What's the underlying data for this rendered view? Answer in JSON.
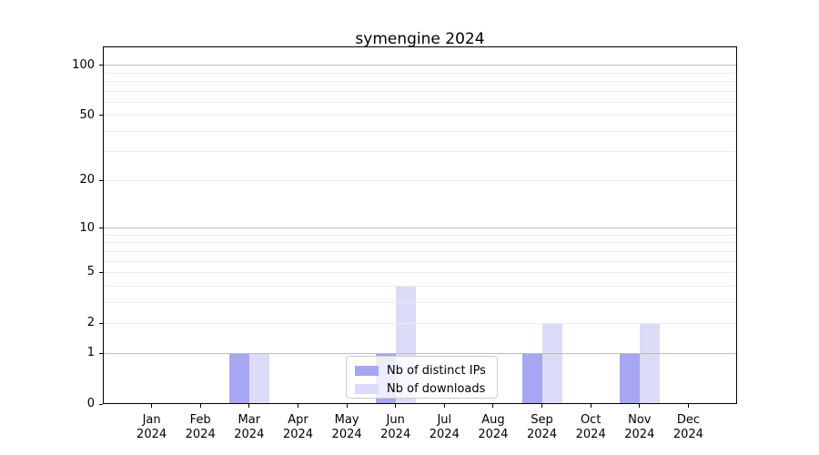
{
  "chart_data": {
    "type": "bar",
    "title": "symengine 2024",
    "categories": [
      "Jan 2024",
      "Feb 2024",
      "Mar 2024",
      "Apr 2024",
      "May 2024",
      "Jun 2024",
      "Jul 2024",
      "Aug 2024",
      "Sep 2024",
      "Oct 2024",
      "Nov 2024",
      "Dec 2024"
    ],
    "x_tick_line1": [
      "Jan",
      "Feb",
      "Mar",
      "Apr",
      "May",
      "Jun",
      "Jul",
      "Aug",
      "Sep",
      "Oct",
      "Nov",
      "Dec"
    ],
    "x_tick_line2": [
      "2024",
      "2024",
      "2024",
      "2024",
      "2024",
      "2024",
      "2024",
      "2024",
      "2024",
      "2024",
      "2024",
      "2024"
    ],
    "series": [
      {
        "name": "Nb of distinct IPs",
        "color": "#a6a6f2",
        "values": [
          0,
          0,
          1,
          0,
          0,
          1,
          0,
          0,
          1,
          0,
          1,
          0
        ]
      },
      {
        "name": "Nb of downloads",
        "color": "#dcdcf8",
        "values": [
          0,
          0,
          1,
          0,
          0,
          4,
          0,
          0,
          2,
          0,
          2,
          0
        ]
      }
    ],
    "y_axis": {
      "scale": "log1p",
      "tick_values": [
        0,
        1,
        2,
        5,
        10,
        20,
        50,
        100
      ],
      "tick_labels": [
        "0",
        "1",
        "2",
        "5",
        "10",
        "20",
        "50",
        "100"
      ],
      "ylim": [
        0,
        129
      ],
      "major_gridlines": [
        1,
        10,
        100
      ],
      "minor_gridlines": [
        2,
        3,
        4,
        5,
        6,
        7,
        8,
        9,
        20,
        30,
        40,
        50,
        60,
        70,
        80,
        90
      ]
    },
    "legend": {
      "position": "lower center",
      "entries": [
        "Nb of distinct IPs",
        "Nb of downloads"
      ]
    },
    "grid": true,
    "colors": {
      "bar_distinct_ips": "#a6a6f2",
      "bar_downloads": "#dcdcf8",
      "grid_major": "#bdbdbd",
      "grid_minor": "#ececec",
      "text": "#000000"
    }
  }
}
